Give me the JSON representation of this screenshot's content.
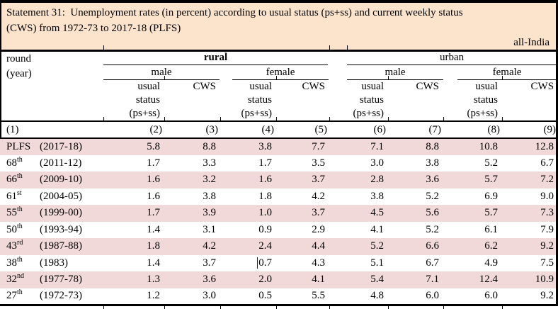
{
  "title": {
    "line1": "Statement 31:  Unemployment rates (in percent) according to usual status (ps+ss) and current weekly status",
    "line2": "(CWS) from 1972-73 to 2017-18 (PLFS)",
    "region_label": "all-India"
  },
  "colors": {
    "band_bg": "#fbe3cc",
    "row_alt_bg": "#f2d9d9",
    "border": "#000000"
  },
  "table": {
    "round_label": "round",
    "year_label": "(year)",
    "groups": {
      "rural": "rural",
      "urban": "urban"
    },
    "subgroups": {
      "male": "male",
      "female": "female"
    },
    "measures": {
      "usual_lines": [
        "usual",
        "status",
        "(ps+ss)"
      ],
      "cws": "CWS"
    },
    "col_numbers": [
      "(1)",
      "(2)",
      "(3)",
      "(4)",
      "(5)",
      "(6)",
      "(7)",
      "(8)",
      "(9)"
    ],
    "rows": [
      {
        "label_main": "PLFS",
        "label_sup": "",
        "label_year": "(2017-18)",
        "values": [
          "5.8",
          "8.8",
          "3.8",
          "7.7",
          "7.1",
          "8.8",
          "10.8",
          "12.8"
        ]
      },
      {
        "label_main": "68",
        "label_sup": "th",
        "label_year": "(2011-12)",
        "values": [
          "1.7",
          "3.3",
          "1.7",
          "3.5",
          "3.0",
          "3.8",
          "5.2",
          "6.7"
        ]
      },
      {
        "label_main": "66",
        "label_sup": "th",
        "label_year": "(2009-10)",
        "values": [
          "1.6",
          "3.2",
          "1.6",
          "3.7",
          "2.8",
          "3.6",
          "5.7",
          "7.2"
        ]
      },
      {
        "label_main": "61",
        "label_sup": "st",
        "label_year": "(2004-05)",
        "values": [
          "1.6",
          "3.8",
          "1.8",
          "4.2",
          "3.8",
          "5.2",
          "6.9",
          "9.0"
        ]
      },
      {
        "label_main": "55",
        "label_sup": "th",
        "label_year": "(1999-00)",
        "values": [
          "1.7",
          "3.9",
          "1.0",
          "3.7",
          "4.5",
          "5.6",
          "5.7",
          "7.3"
        ]
      },
      {
        "label_main": "50",
        "label_sup": "th",
        "label_year": "(1993-94)",
        "values": [
          "1.4",
          "3.1",
          "0.9",
          "2.9",
          "4.1",
          "5.2",
          "6.1",
          "7.9"
        ]
      },
      {
        "label_main": "43",
        "label_sup": "rd",
        "label_year": "(1987-88)",
        "values": [
          "1.8",
          "4.2",
          "2.4",
          "4.4",
          "5.2",
          "6.6",
          "6.2",
          "9.2"
        ]
      },
      {
        "label_main": "38",
        "label_sup": "th",
        "label_year": "(1983)",
        "values": [
          "1.4",
          "3.7",
          "0.7",
          "4.3",
          "5.1",
          "6.7",
          "4.9",
          "7.5"
        ]
      },
      {
        "label_main": "32",
        "label_sup": "nd",
        "label_year": "(1977-78)",
        "values": [
          "1.3",
          "3.6",
          "2.0",
          "4.1",
          "5.4",
          "7.1",
          "12.4",
          "10.9"
        ]
      },
      {
        "label_main": "27",
        "label_sup": "th",
        "label_year": "(1972-73)",
        "values": [
          "1.2",
          "3.0",
          "0.5",
          "5.5",
          "4.8",
          "6.0",
          "6.0",
          "9.2"
        ]
      }
    ]
  }
}
